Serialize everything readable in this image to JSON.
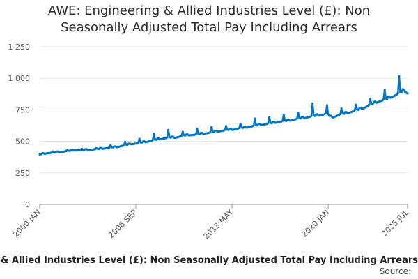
{
  "chart_data": {
    "type": "line",
    "title_lines": [
      "AWE: Engineering & Allied Industries Level (£): Non",
      "Seasonally Adjusted Total Pay Including Arrears"
    ],
    "xlabel": "",
    "ylabel": "",
    "ylim": [
      0,
      1250
    ],
    "yticks": [
      0,
      250,
      500,
      750,
      1000,
      1250
    ],
    "ytick_labels": [
      "0",
      "250",
      "500",
      "750",
      "1 000",
      "1 250"
    ],
    "xtick_labels": [
      "2000 JAN",
      "2006 SEP",
      "2013 MAY",
      "2020 JAN",
      "2025 JUL"
    ],
    "xtick_dates": [
      "2000-01",
      "2006-09",
      "2013-05",
      "2020-01",
      "2025-07"
    ],
    "grid": "horizontal",
    "line_color": "#0075c2",
    "series": [
      {
        "name": "Engineering & Allied Industries Level (£): Non Seasonally Adjusted Total Pay Including Arrears",
        "points": [
          [
            "2000-01",
            395
          ],
          [
            "2000-07",
            405
          ],
          [
            "2000-12",
            410
          ],
          [
            "2001-06",
            415
          ],
          [
            "2001-12",
            422
          ],
          [
            "2002-06",
            428
          ],
          [
            "2002-12",
            430
          ],
          [
            "2003-06",
            432
          ],
          [
            "2003-12",
            438
          ],
          [
            "2004-06",
            442
          ],
          [
            "2004-12",
            450
          ],
          [
            "2005-06",
            455
          ],
          [
            "2005-12",
            470
          ],
          [
            "2006-06",
            478
          ],
          [
            "2006-12",
            488
          ],
          [
            "2007-06",
            495
          ],
          [
            "2007-12",
            510
          ],
          [
            "2008-06",
            518
          ],
          [
            "2008-12",
            530
          ],
          [
            "2009-06",
            528
          ],
          [
            "2009-12",
            545
          ],
          [
            "2010-06",
            548
          ],
          [
            "2010-12",
            555
          ],
          [
            "2011-06",
            560
          ],
          [
            "2011-12",
            572
          ],
          [
            "2012-06",
            578
          ],
          [
            "2012-12",
            590
          ],
          [
            "2013-06",
            592
          ],
          [
            "2013-12",
            605
          ],
          [
            "2014-06",
            610
          ],
          [
            "2014-12",
            625
          ],
          [
            "2015-06",
            630
          ],
          [
            "2015-12",
            642
          ],
          [
            "2016-06",
            648
          ],
          [
            "2016-12",
            660
          ],
          [
            "2017-06",
            665
          ],
          [
            "2017-12",
            680
          ],
          [
            "2018-06",
            685
          ],
          [
            "2018-12",
            700
          ],
          [
            "2019-06",
            705
          ],
          [
            "2019-12",
            720
          ],
          [
            "2020-04",
            685
          ],
          [
            "2020-09",
            705
          ],
          [
            "2020-12",
            715
          ],
          [
            "2021-06",
            725
          ],
          [
            "2021-12",
            745
          ],
          [
            "2022-06",
            760
          ],
          [
            "2022-12",
            790
          ],
          [
            "2023-06",
            810
          ],
          [
            "2023-12",
            830
          ],
          [
            "2024-06",
            850
          ],
          [
            "2024-12",
            880
          ],
          [
            "2025-03",
            900
          ],
          [
            "2025-07",
            880
          ]
        ],
        "december_spikes": [
          [
            "2000-12",
            420
          ],
          [
            "2001-12",
            432
          ],
          [
            "2002-12",
            440
          ],
          [
            "2003-12",
            445
          ],
          [
            "2004-12",
            470
          ],
          [
            "2005-12",
            495
          ],
          [
            "2006-12",
            520
          ],
          [
            "2007-12",
            560
          ],
          [
            "2008-12",
            590
          ],
          [
            "2009-12",
            575
          ],
          [
            "2010-12",
            600
          ],
          [
            "2011-12",
            612
          ],
          [
            "2012-12",
            620
          ],
          [
            "2013-12",
            640
          ],
          [
            "2014-12",
            680
          ],
          [
            "2015-12",
            690
          ],
          [
            "2016-12",
            710
          ],
          [
            "2017-12",
            725
          ],
          [
            "2018-12",
            800
          ],
          [
            "2019-12",
            785
          ],
          [
            "2020-12",
            760
          ],
          [
            "2021-12",
            790
          ],
          [
            "2022-12",
            835
          ],
          [
            "2023-12",
            905
          ],
          [
            "2024-12",
            1015
          ]
        ]
      }
    ]
  },
  "footer": {
    "series_label": "Engineering & Allied Industries Level (£): Non Seasonally Adjusted Total Pay Including Arrears",
    "source_label": "Source:"
  }
}
